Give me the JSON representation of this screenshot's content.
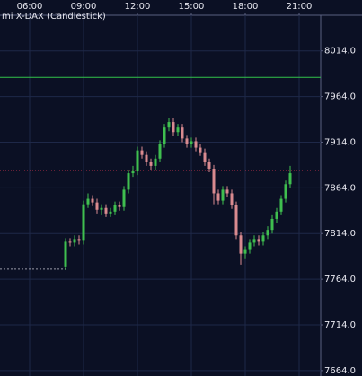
{
  "chart_data": {
    "type": "candlestick",
    "title": "mi X-DAX (Candlestick)",
    "x": [
      8,
      8.25,
      8.5,
      8.75,
      9,
      9.25,
      9.5,
      9.75,
      10,
      10.25,
      10.5,
      10.75,
      11,
      11.25,
      11.5,
      11.75,
      12,
      12.25,
      12.5,
      12.75,
      13,
      13.25,
      13.5,
      13.75,
      14,
      14.25,
      14.5,
      14.75,
      15,
      15.25,
      15.5,
      15.75,
      16,
      16.25,
      16.5,
      16.75,
      17,
      17.25,
      17.5,
      17.75,
      18,
      18.25,
      18.5,
      18.75,
      19,
      19.25,
      19.5,
      19.75,
      20,
      20.25,
      20.5
    ],
    "open": [
      7778,
      7805,
      7804,
      7808,
      7806,
      7846,
      7852,
      7848,
      7840,
      7842,
      7836,
      7838,
      7845,
      7843,
      7862,
      7880,
      7882,
      7905,
      7900,
      7892,
      7888,
      7896,
      7912,
      7930,
      7936,
      7925,
      7930,
      7918,
      7912,
      7915,
      7908,
      7903,
      7892,
      7885,
      7858,
      7850,
      7862,
      7858,
      7845,
      7812,
      7792,
      7796,
      7804,
      7808,
      7805,
      7812,
      7818,
      7830,
      7838,
      7852,
      7868
    ],
    "high": [
      7809,
      7809,
      7812,
      7812,
      7850,
      7858,
      7856,
      7852,
      7846,
      7846,
      7842,
      7849,
      7849,
      7866,
      7884,
      7888,
      7909,
      7909,
      7904,
      7896,
      7900,
      7916,
      7934,
      7941,
      7940,
      7934,
      7934,
      7922,
      7919,
      7919,
      7912,
      7907,
      7896,
      7889,
      7862,
      7866,
      7866,
      7862,
      7849,
      7816,
      7800,
      7808,
      7812,
      7812,
      7816,
      7822,
      7834,
      7842,
      7856,
      7872,
      7888
    ],
    "low": [
      7774,
      7800,
      7800,
      7802,
      7802,
      7842,
      7844,
      7836,
      7834,
      7832,
      7832,
      7834,
      7839,
      7839,
      7858,
      7876,
      7878,
      7896,
      7888,
      7884,
      7884,
      7892,
      7908,
      7926,
      7921,
      7921,
      7914,
      7908,
      7908,
      7904,
      7899,
      7888,
      7881,
      7846,
      7846,
      7846,
      7854,
      7841,
      7808,
      7780,
      7786,
      7792,
      7800,
      7801,
      7801,
      7808,
      7814,
      7826,
      7834,
      7848,
      7864
    ],
    "close": [
      7805,
      7804,
      7808,
      7806,
      7846,
      7852,
      7848,
      7840,
      7842,
      7836,
      7838,
      7845,
      7843,
      7862,
      7880,
      7882,
      7905,
      7900,
      7892,
      7888,
      7896,
      7912,
      7930,
      7936,
      7925,
      7930,
      7918,
      7912,
      7915,
      7908,
      7903,
      7892,
      7885,
      7858,
      7850,
      7862,
      7858,
      7845,
      7812,
      7792,
      7796,
      7804,
      7808,
      7805,
      7812,
      7818,
      7830,
      7838,
      7852,
      7868,
      7880
    ],
    "up_color": "#3fbf4f",
    "down_color": "#d98a8f",
    "xlim": [
      4.35,
      22.2
    ],
    "xticks": [
      {
        "value": 6,
        "label": "06:00"
      },
      {
        "value": 9,
        "label": "09:00"
      },
      {
        "value": 12,
        "label": "12:00"
      },
      {
        "value": 15,
        "label": "15:00"
      },
      {
        "value": 18,
        "label": "18:00"
      },
      {
        "value": 21,
        "label": "21:00"
      }
    ],
    "ylim": [
      7658,
      8053
    ],
    "yticks": [
      {
        "value": 7664,
        "label": "7664.0"
      },
      {
        "value": 7714,
        "label": "7714.0"
      },
      {
        "value": 7764,
        "label": "7764.0"
      },
      {
        "value": 7814,
        "label": "7814.0"
      },
      {
        "value": 7864,
        "label": "7864.0"
      },
      {
        "value": 7914,
        "label": "7914.0"
      },
      {
        "value": 7964,
        "label": "7964.0"
      },
      {
        "value": 8014,
        "label": "8014.0"
      }
    ],
    "grid": true,
    "reference_lines": [
      {
        "value": 7985,
        "color": "#33c24a",
        "style": "solid"
      },
      {
        "value": 7883,
        "color": "#c0304a",
        "style": "dotted"
      }
    ],
    "previous_close": {
      "value": 7775,
      "x_end": 8,
      "color": "#9a9aa8"
    }
  }
}
